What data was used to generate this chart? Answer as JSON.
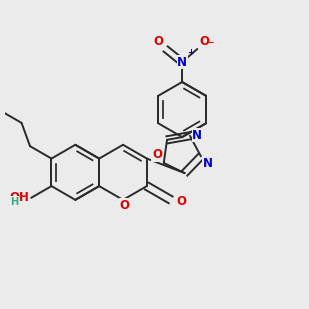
{
  "bg_color": "#ebebeb",
  "bond_color": "#2a2a2a",
  "bond_width": 1.4,
  "atom_colors": {
    "O": "#e00000",
    "N": "#0000cc",
    "H": "#3aaa88",
    "C": "#2a2a2a"
  },
  "figsize": [
    3.0,
    3.0
  ],
  "dpi": 100,
  "BL": 0.092,
  "bcx": 0.235,
  "bcy": 0.44
}
